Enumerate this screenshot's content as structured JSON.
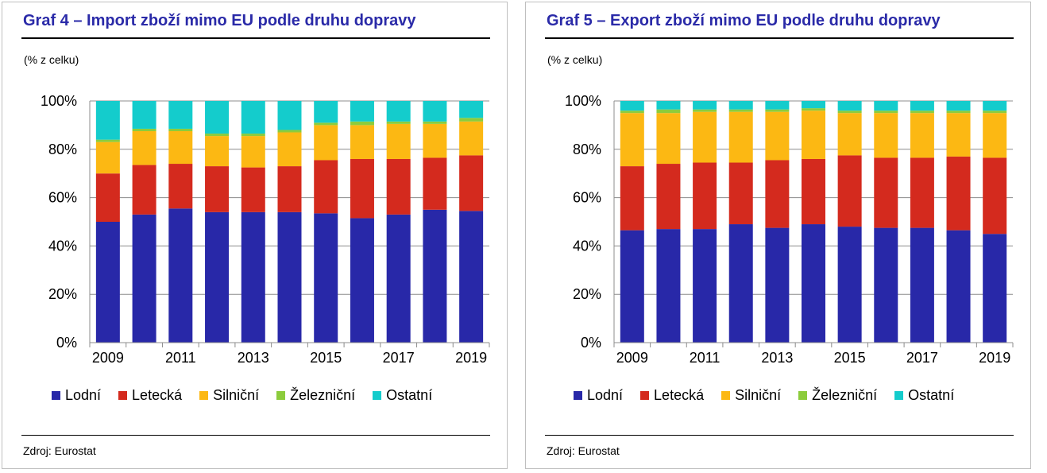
{
  "chart_data": [
    {
      "type": "bar",
      "stacked": true,
      "title": "Graf 4 – Import zboží mimo EU podle druhu dopravy",
      "unit_label": "(% z celku)",
      "source": "Zdroj: Eurostat",
      "categories": [
        "2009",
        "2010",
        "2011",
        "2012",
        "2013",
        "2014",
        "2015",
        "2016",
        "2017",
        "2018",
        "2019"
      ],
      "x_tick_labels": [
        "2009",
        "2011",
        "2013",
        "2015",
        "2017",
        "2019"
      ],
      "y_ticks": [
        "0%",
        "20%",
        "40%",
        "60%",
        "80%",
        "100%"
      ],
      "ylim": [
        0,
        100
      ],
      "grid": true,
      "legend_position": "bottom",
      "series": [
        {
          "name": "Lodní",
          "color": "#2828a8",
          "values": [
            50,
            53,
            55.5,
            54,
            54,
            54,
            53.5,
            51.5,
            53,
            55,
            54.5
          ]
        },
        {
          "name": "Letecká",
          "color": "#d42a1e",
          "values": [
            20,
            20.5,
            18.5,
            19,
            18.5,
            19,
            22,
            24.5,
            23,
            21.5,
            23
          ]
        },
        {
          "name": "Silniční",
          "color": "#fcb813",
          "values": [
            13,
            14,
            13.5,
            12.5,
            13,
            14,
            14.5,
            14,
            14.5,
            14,
            14
          ]
        },
        {
          "name": "Železniční",
          "color": "#8ccc3c",
          "values": [
            1,
            1,
            1,
            1,
            1,
            1,
            1,
            1.5,
            1,
            1,
            1.5
          ]
        },
        {
          "name": "Ostatní",
          "color": "#14cccc",
          "values": [
            16,
            11.5,
            11.5,
            13.5,
            13.5,
            12,
            9,
            8.5,
            8.5,
            8.5,
            7
          ]
        }
      ]
    },
    {
      "type": "bar",
      "stacked": true,
      "title": "Graf 5 – Export zboží mimo EU podle druhu dopravy",
      "unit_label": "(% z celku)",
      "source": "Zdroj: Eurostat",
      "categories": [
        "2009",
        "2010",
        "2011",
        "2012",
        "2013",
        "2014",
        "2015",
        "2016",
        "2017",
        "2018",
        "2019"
      ],
      "x_tick_labels": [
        "2009",
        "2011",
        "2013",
        "2015",
        "2017",
        "2019"
      ],
      "y_ticks": [
        "0%",
        "20%",
        "40%",
        "60%",
        "80%",
        "100%"
      ],
      "ylim": [
        0,
        100
      ],
      "grid": true,
      "legend_position": "bottom",
      "series": [
        {
          "name": "Lodní",
          "color": "#2828a8",
          "values": [
            46.5,
            47,
            47,
            49,
            47.5,
            49,
            48,
            47.5,
            47.5,
            46.5,
            45
          ]
        },
        {
          "name": "Letecká",
          "color": "#d42a1e",
          "values": [
            26.5,
            27,
            27.5,
            25.5,
            28,
            27,
            29.5,
            29,
            29,
            30.5,
            31.5
          ]
        },
        {
          "name": "Silniční",
          "color": "#fcb813",
          "values": [
            22,
            21,
            21,
            21,
            20,
            20,
            17.5,
            18.5,
            18.5,
            18,
            18.5
          ]
        },
        {
          "name": "Železniční",
          "color": "#8ccc3c",
          "values": [
            1,
            1.5,
            1,
            1,
            1,
            1,
            1,
            1,
            1,
            1,
            1
          ]
        },
        {
          "name": "Ostatní",
          "color": "#14cccc",
          "values": [
            4,
            3.5,
            3.5,
            3.5,
            3.5,
            3,
            4,
            4,
            4,
            4,
            4
          ]
        }
      ]
    }
  ]
}
